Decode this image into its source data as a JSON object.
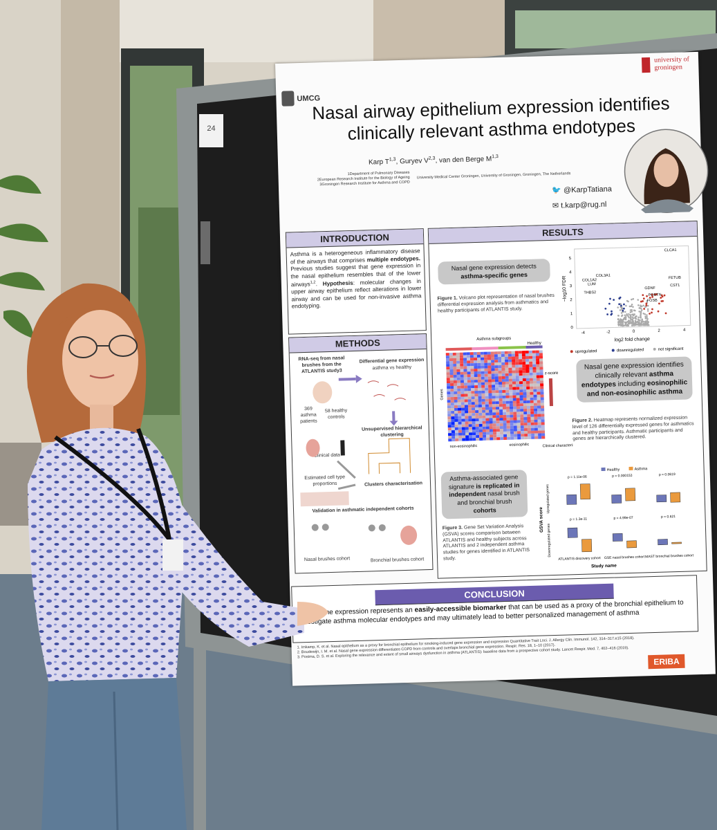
{
  "poster": {
    "board_number": "24",
    "logo_left": "UMCG",
    "logo_right": "university of groningen",
    "logo_bottom": "ERIBA",
    "title": "Nasal airway epithelium expression identifies clinically relevant asthma endotypes",
    "authors": [
      {
        "text": "Karp T"
      },
      {
        "text": "1,3",
        "sup": true
      },
      {
        "text": ", Guryev V"
      },
      {
        "text": "2,3",
        "sup": true
      },
      {
        "text": ", van den Berge M"
      },
      {
        "text": "1,3",
        "sup": true
      }
    ],
    "affiliations": [
      "1Department of Pulmonary Diseases",
      "2European Research Institute for the Biology of Ageing",
      "3Groningen Research Institute for Asthma and COPD"
    ],
    "affiliation_group": "University Medical Center Groningen, University of Groningen, Groningen, The Netherlands",
    "twitter": "@KarpTatiana",
    "email": "t.karp@rug.nl",
    "introduction": {
      "heading": "INTRODUCTION",
      "text": [
        {
          "text": "Asthma is a heterogeneous inflammatory disease of the airways that comprises "
        },
        {
          "text": "multiple endotypes.",
          "bold": true
        },
        {
          "text": " Previous studies suggest that gene expression in the nasal epithelium resembles that of the lower airways"
        },
        {
          "text": "1,2",
          "sup": true
        },
        {
          "text": ". "
        },
        {
          "text": "Hypothesis",
          "bold": true
        },
        {
          "text": ": molecular changes in upper airway epithelium reflect alterations in lower airway and can be used for non-invasive asthma endotyping."
        }
      ]
    },
    "methods": {
      "heading": "METHODS",
      "rnaseq": "RNA-seq from nasal brushes from the ATLANTIS study3",
      "dge": "Differential gene expression",
      "dge_sub": "asthma vs healthy",
      "asthma_patients": "369 asthma patients",
      "healthy_controls": "58 healthy controls",
      "clustering": "Unsupervised hierarchical clustering",
      "clinical": "Clinical data",
      "cell_types": "Estimated cell type proportions",
      "characterisation": "Clusters characterisation",
      "validation": "Validation in asthmatic independent cohorts",
      "nasal_cohort": "Nasal brushes cohort",
      "bronchial_cohort": "Bronchial brushes cohort"
    },
    "results": {
      "heading": "RESULTS",
      "callout_1": [
        {
          "text": "Nasal gene expression detects "
        },
        {
          "text": "asthma-specific genes",
          "bold": true
        }
      ],
      "figure_1": [
        {
          "text": "Figure 1.",
          "bold": true
        },
        {
          "text": " Volcano plot representation of nasal brushes differential expression analysis from asthmatics and healthy participants of ATLANTIS study."
        }
      ],
      "volcano": {
        "y_label": "−log10 FDR",
        "x_label": "log2 fold change",
        "x_ticks": [
          -4,
          -2,
          0,
          2,
          4
        ],
        "y_ticks": [
          0,
          1,
          2,
          3,
          4,
          5
        ],
        "genes": [
          "CLCA1",
          "COL1A2",
          "COL3A1",
          "LUM",
          "THBS2",
          "FETUB",
          "CST1",
          "GDNF",
          "POSTN",
          "FOSB"
        ],
        "legend": [
          "upregulated",
          "downregulated",
          "not significant"
        ]
      },
      "heatmap": {
        "subgroups": "Asthma subgroups",
        "healthy": "Healthy",
        "genes": "Genes",
        "zscore": "z-score",
        "non_eosinophilic": "non-eosinophilic",
        "eosinophilic": "eosinophilic",
        "clinical": "Clinical characteristic"
      },
      "callout_2": [
        {
          "text": "Nasal gene expression identifies clinically relevant "
        },
        {
          "text": "asthma endotypes",
          "bold": true
        },
        {
          "text": " including "
        },
        {
          "text": "eosinophilic and non-eosinophilic asthma",
          "bold": true
        }
      ],
      "figure_2": [
        {
          "text": "Figure 2.",
          "bold": true
        },
        {
          "text": " Heatmap represents normalized expression level of 126 differentially expressed genes for asthmatics and healthy participants. Asthmatic participants and genes are hierarchically clustered."
        }
      ],
      "callout_3": [
        {
          "text": "Asthma-associated gene signature "
        },
        {
          "text": "is replicated in independent",
          "bold": true
        },
        {
          "text": " nasal brush and bronchial brush "
        },
        {
          "text": "cohorts",
          "bold": true
        }
      ],
      "figure_3": [
        {
          "text": "Figure 3.",
          "bold": true
        },
        {
          "text": " Gene Set Variation Analysis (GSVA) scores comparison between ATLANTIS and healthy subjects across ATLANTIS and 2 independent asthma studies for genes identified in ATLANTIS study."
        }
      ],
      "boxplot": {
        "legend": [
          "Healthy",
          "Asthma"
        ],
        "y_label": "GSVA score",
        "upregulated": "Upregulated genes",
        "downregulated": "Downregulated genes",
        "p_up": [
          "p = 1.11e-06",
          "p = 0.000153",
          "p = 0.0619"
        ],
        "p_down": [
          "p = 1.3e-11",
          "p = 4.99e-07",
          "p = 0.621"
        ],
        "cohorts": [
          "ATLANTIS discovery cohort",
          "GSE nasal brushes cohort",
          "MAST bronchial brushes cohort"
        ],
        "x_label": "Study name"
      }
    },
    "conclusion": {
      "heading": "CONCLUSION",
      "text": [
        {
          "text": "Nasal gene expression represents an "
        },
        {
          "text": "easily-accessible biomarker",
          "bold": true
        },
        {
          "text": " that can be used as a proxy of the bronchial epithelium to investigate asthma molecular endotypes and may ultimately lead to better personalized management of asthma"
        }
      ]
    },
    "references": [
      "1. Imkamp, K. et al. Nasal epithelium as a proxy for bronchial epithelium for smoking-induced gene expression and expression Quantitative Trait Loci. J. Allergy Clin. Immunol. 142, 314–317.e15 (2018).",
      "2. Boudewijn, I. M. et al. Nasal gene expression differentiates COPD from controls and overlaps bronchial gene expression. Respir. Res. 18, 1–10 (2017).",
      "3. Postma, D. S. et al. Exploring the relevance and extent of small airways dysfunction in asthma (ATLANTIS): baseline data from a prospective cohort study. Lancet Respir. Med. 7, 402–416 (2019)."
    ]
  }
}
